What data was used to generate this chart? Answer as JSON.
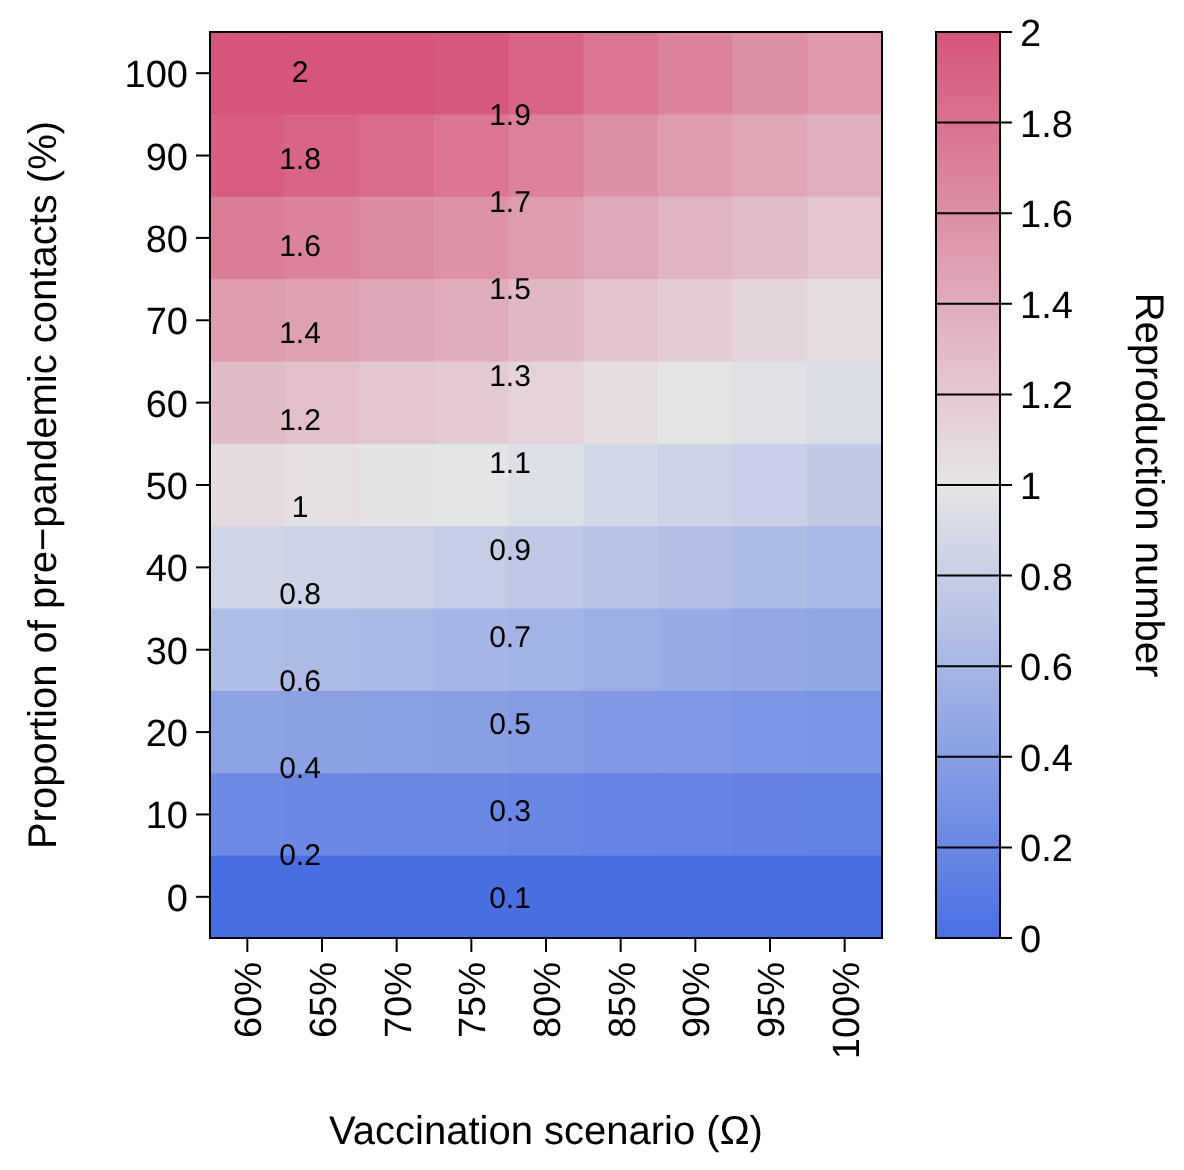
{
  "chart_data": {
    "type": "heatmap",
    "xlabel": "Vaccination scenario (Ω)",
    "ylabel": "Proportion of pre−pandemic contacts (%)",
    "clabel": "Reproduction number",
    "categories": [
      "60%",
      "65%",
      "70%",
      "75%",
      "80%",
      "85%",
      "90%",
      "95%",
      "100%"
    ],
    "y_categories": [
      "100",
      "90",
      "80",
      "70",
      "60",
      "50",
      "40",
      "30",
      "20",
      "10",
      "0"
    ],
    "cells": [
      [
        2.0,
        2.0,
        2.0,
        1.98,
        1.89,
        1.77,
        1.68,
        1.6,
        1.53
      ],
      [
        1.94,
        1.89,
        1.84,
        1.78,
        1.7,
        1.59,
        1.51,
        1.44,
        1.37
      ],
      [
        1.72,
        1.68,
        1.63,
        1.58,
        1.51,
        1.42,
        1.34,
        1.28,
        1.22
      ],
      [
        1.51,
        1.47,
        1.43,
        1.39,
        1.32,
        1.24,
        1.18,
        1.12,
        1.07
      ],
      [
        1.29,
        1.26,
        1.22,
        1.19,
        1.13,
        1.06,
        1.01,
        0.96,
        0.92
      ],
      [
        1.08,
        1.05,
        1.02,
        0.99,
        0.94,
        0.88,
        0.84,
        0.8,
        0.76
      ],
      [
        0.86,
        0.84,
        0.82,
        0.79,
        0.75,
        0.71,
        0.67,
        0.64,
        0.61
      ],
      [
        0.65,
        0.63,
        0.61,
        0.59,
        0.57,
        0.53,
        0.5,
        0.48,
        0.46
      ],
      [
        0.43,
        0.42,
        0.41,
        0.4,
        0.38,
        0.35,
        0.34,
        0.32,
        0.31
      ],
      [
        0.22,
        0.21,
        0.2,
        0.2,
        0.19,
        0.18,
        0.17,
        0.16,
        0.15
      ],
      [
        0.0,
        0.0,
        0.0,
        0.0,
        0.0,
        0.0,
        0.0,
        0.0,
        0.0
      ]
    ],
    "clim": [
      0,
      2
    ],
    "cticks": [
      0,
      0.2,
      0.4,
      0.6,
      0.8,
      1,
      1.2,
      1.4,
      1.6,
      1.8,
      2
    ],
    "annotations": [
      "2",
      "1.9",
      "1.8",
      "1.7",
      "1.6",
      "1.5",
      "1.4",
      "1.3",
      "1.2",
      "1.1",
      "1",
      "0.9",
      "0.8",
      "0.7",
      "0.6",
      "0.5",
      "0.4",
      "0.3",
      "0.2",
      "0.1"
    ]
  }
}
